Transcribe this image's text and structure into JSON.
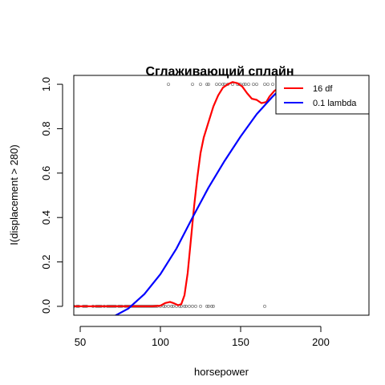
{
  "chart_data": {
    "type": "line",
    "title": "Сглаживающий сплайн",
    "xlabel": "horsepower",
    "ylabel": "I(displacement > 280)",
    "xlim": [
      46,
      230
    ],
    "ylim": [
      -0.04,
      1.04
    ],
    "x_ticks": [
      50,
      100,
      150,
      200
    ],
    "y_ticks": [
      0.0,
      0.2,
      0.4,
      0.6,
      0.8,
      1.0
    ],
    "y_tick_labels": [
      "0.0",
      "0.2",
      "0.4",
      "0.6",
      "0.8",
      "1.0"
    ],
    "grid": false,
    "legend_position": "top-right",
    "series": [
      {
        "name": "16 df",
        "color": "#ff0000",
        "x": [
          46,
          60,
          80,
          95,
          100,
          103,
          106,
          108,
          111,
          113,
          115,
          117,
          119,
          121,
          123,
          125,
          127,
          130,
          133,
          136,
          139,
          142,
          145,
          148,
          151,
          154,
          157,
          160,
          163,
          166,
          168,
          171,
          174,
          177
        ],
        "y": [
          0.0,
          0.0,
          0.0,
          0.0,
          0.003,
          0.015,
          0.02,
          0.015,
          0.005,
          0.01,
          0.05,
          0.15,
          0.3,
          0.45,
          0.58,
          0.69,
          0.76,
          0.83,
          0.9,
          0.95,
          0.985,
          1.0,
          1.01,
          1.005,
          0.99,
          0.96,
          0.935,
          0.93,
          0.915,
          0.92,
          0.945,
          0.97,
          0.985,
          1.0
        ]
      },
      {
        "name": "0.1 lambda",
        "color": "#0000ff",
        "x": [
          71,
          80,
          90,
          100,
          110,
          120,
          130,
          140,
          150,
          160,
          170,
          175
        ],
        "y": [
          -0.045,
          -0.01,
          0.055,
          0.145,
          0.26,
          0.4,
          0.535,
          0.655,
          0.765,
          0.865,
          0.945,
          0.98
        ]
      }
    ],
    "points": {
      "color": "#888888",
      "x": [
        46,
        48,
        49,
        52,
        53,
        54,
        58,
        60,
        61,
        62,
        63,
        65,
        67,
        68,
        69,
        70,
        71,
        72,
        74,
        75,
        76,
        78,
        79,
        80,
        81,
        82,
        83,
        84,
        85,
        86,
        87,
        88,
        89,
        90,
        91,
        92,
        93,
        94,
        95,
        96,
        97,
        98,
        100,
        102,
        103,
        105,
        107,
        108,
        110,
        112,
        113,
        115,
        116,
        118,
        120,
        122,
        125,
        129,
        130,
        132,
        133,
        165,
        105,
        120,
        125,
        129,
        130,
        135,
        137,
        139,
        140,
        142,
        145,
        148,
        149,
        150,
        152,
        153,
        155,
        158,
        160,
        165,
        167,
        170,
        175
      ],
      "y": [
        0,
        0,
        0,
        0,
        0,
        0,
        0,
        0,
        0,
        0,
        0,
        0,
        0,
        0,
        0,
        0,
        0,
        0,
        0,
        0,
        0,
        0,
        0,
        0,
        0,
        0,
        0,
        0,
        0,
        0,
        0,
        0,
        0,
        0,
        0,
        0,
        0,
        0,
        0,
        0,
        0,
        0,
        0,
        0,
        0,
        0,
        0,
        0,
        0,
        0,
        0,
        0,
        0,
        0,
        0,
        0,
        0,
        0,
        0,
        0,
        0,
        0,
        1,
        1,
        1,
        1,
        1,
        1,
        1,
        1,
        1,
        1,
        1,
        1,
        1,
        1,
        1,
        1,
        1,
        1,
        1,
        1,
        1,
        1,
        1
      ]
    }
  }
}
